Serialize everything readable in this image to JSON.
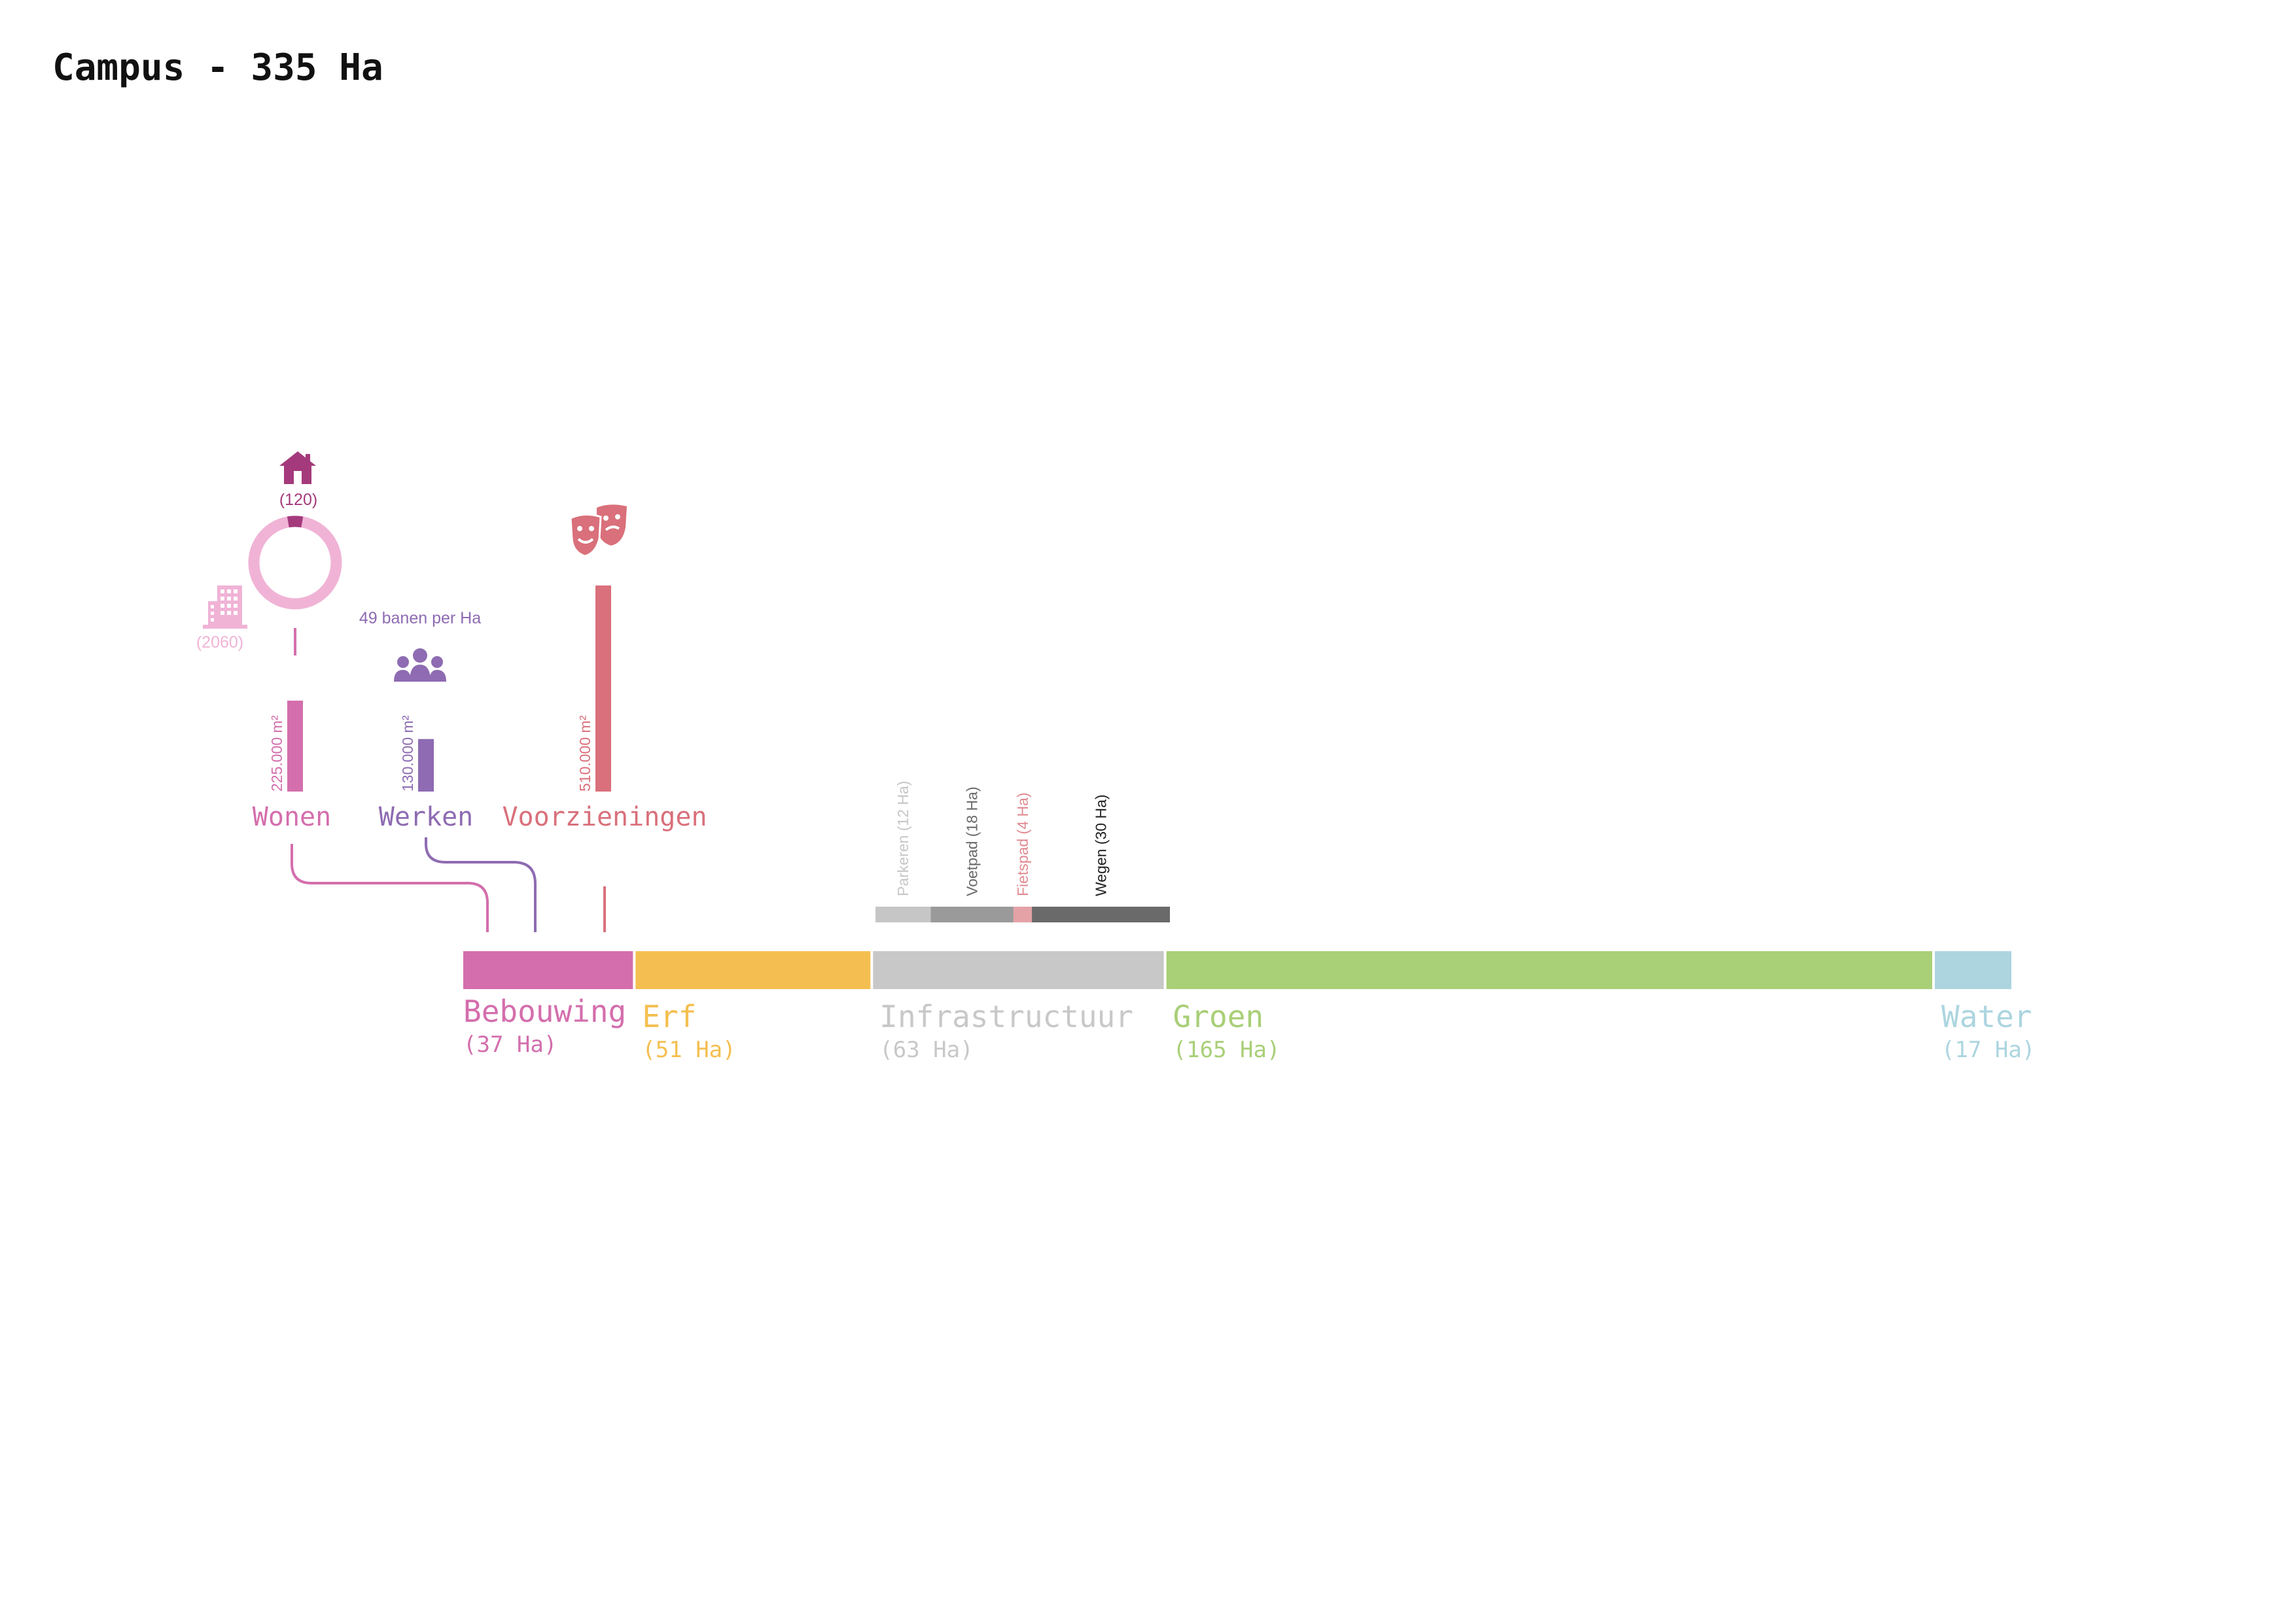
{
  "title": "Campus - 335 Ha",
  "colors": {
    "bebouwing": "#d46ead",
    "erf": "#f4bf50",
    "infrastructuur": "#c8c8c9",
    "groen": "#a9cf77",
    "water": "#acd5e0",
    "wonen": "#d46ead",
    "wonen_light": "#f0b3d6",
    "wonen_dark": "#a43a7c",
    "werken": "#8e6bb2",
    "voorzieningen": "#d9707b",
    "parkeren": "#c6c6c6",
    "voetpad": "#9a9a9a",
    "fietspad": "#e4a2a6",
    "wegen": "#6a6a6a"
  },
  "categories": [
    {
      "key": "bebouwing",
      "label": "Bebouwing",
      "area_label": "(37 Ha)",
      "ha": 37
    },
    {
      "key": "erf",
      "label": "Erf",
      "area_label": "(51 Ha)",
      "ha": 51
    },
    {
      "key": "infrastructuur",
      "label": "Infrastructuur",
      "area_label": "(63 Ha)",
      "ha": 63
    },
    {
      "key": "groen",
      "label": "Groen",
      "area_label": "(165 Ha)",
      "ha": 165
    },
    {
      "key": "water",
      "label": "Water",
      "area_label": "(17 Ha)",
      "ha": 17
    }
  ],
  "infrastructure": [
    {
      "key": "parkeren",
      "label": "Parkeren (12 Ha)",
      "ha": 12
    },
    {
      "key": "voetpad",
      "label": "Voetpad (18 Ha)",
      "ha": 18
    },
    {
      "key": "fietspad",
      "label": "Fietspad (4 Ha)",
      "ha": 4
    },
    {
      "key": "wegen",
      "label": "Wegen (30 Ha)",
      "ha": 30
    }
  ],
  "uses": [
    {
      "key": "wonen",
      "label": "Wonen",
      "value_label": "225.000 m²",
      "m2": 225000
    },
    {
      "key": "werken",
      "label": "Werken",
      "value_label": "130.000 m²",
      "m2": 130000
    },
    {
      "key": "voorzieningen",
      "label": "Voorzieningen",
      "value_label": "510.000 m²",
      "m2": 510000
    }
  ],
  "housing": {
    "houses": "(120)",
    "apartments": "(2060)",
    "houses_count": 120,
    "apartments_count": 2060
  },
  "jobs": {
    "label": "49 banen per Ha"
  },
  "icons": {
    "house": "house-icon",
    "apartment": "apartment-building-icon",
    "people": "people-group-icon",
    "theater": "theater-masks-icon"
  }
}
